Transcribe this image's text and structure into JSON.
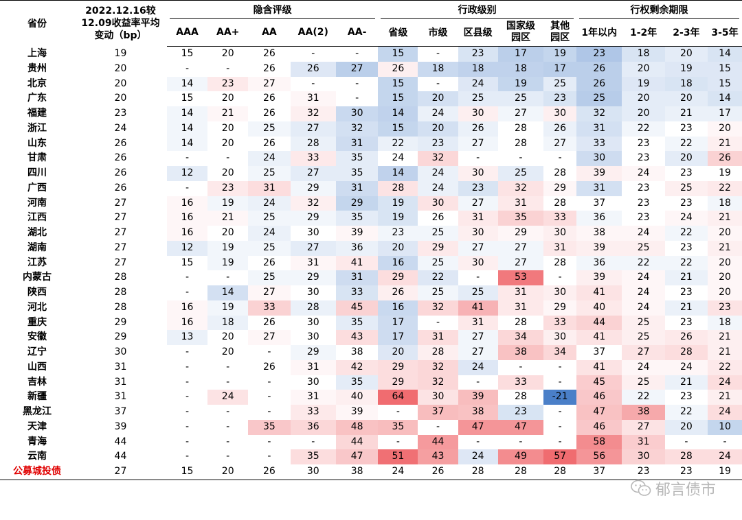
{
  "chart_data": {
    "type": "table",
    "corner_header_province": "省份",
    "corner_header_change": [
      "2022.12.16较",
      "12.09收益率平均",
      "变动（bp）"
    ],
    "groups": [
      {
        "label": "隐含评级",
        "columns": [
          "AAA",
          "AA+",
          "AA",
          "AA(2)",
          "AA-"
        ]
      },
      {
        "label": "行政级别",
        "columns": [
          "省级",
          "市级",
          "区县级",
          "国家级\n园区",
          "其他\n园区"
        ]
      },
      {
        "label": "行权剩余期限",
        "columns": [
          "1年以内",
          "1-2年",
          "2-3年",
          "3-5年"
        ]
      }
    ],
    "rows": [
      {
        "province": "上海",
        "change": "19",
        "cells": [
          "15",
          "20",
          "26",
          "-",
          "-",
          "15",
          "-",
          "23",
          "17",
          "19",
          "23",
          "18",
          "20",
          "14"
        ]
      },
      {
        "province": "贵州",
        "change": "20",
        "cells": [
          "-",
          "-",
          "26",
          "26",
          "27",
          "26",
          "18",
          "18",
          "18",
          "17",
          "26",
          "20",
          "19",
          "15"
        ]
      },
      {
        "province": "北京",
        "change": "20",
        "cells": [
          "14",
          "23",
          "27",
          "-",
          "-",
          "15",
          "-",
          "24",
          "19",
          "25",
          "26",
          "19",
          "18",
          "15"
        ]
      },
      {
        "province": "广东",
        "change": "20",
        "cells": [
          "15",
          "20",
          "26",
          "31",
          "-",
          "15",
          "20",
          "25",
          "25",
          "23",
          "25",
          "20",
          "20",
          "14"
        ]
      },
      {
        "province": "福建",
        "change": "23",
        "cells": [
          "14",
          "21",
          "26",
          "32",
          "30",
          "14",
          "24",
          "30",
          "27",
          "30",
          "32",
          "20",
          "21",
          "17"
        ]
      },
      {
        "province": "浙江",
        "change": "24",
        "cells": [
          "14",
          "20",
          "25",
          "27",
          "32",
          "15",
          "20",
          "26",
          "28",
          "26",
          "31",
          "22",
          "23",
          "20"
        ]
      },
      {
        "province": "山东",
        "change": "26",
        "cells": [
          "14",
          "20",
          "26",
          "28",
          "31",
          "22",
          "23",
          "27",
          "28",
          "27",
          "33",
          "23",
          "22",
          "21"
        ]
      },
      {
        "province": "甘肃",
        "change": "26",
        "cells": [
          "-",
          "-",
          "24",
          "33",
          "35",
          "24",
          "32",
          "-",
          "-",
          "-",
          "30",
          "23",
          "20",
          "26"
        ]
      },
      {
        "province": "四川",
        "change": "26",
        "cells": [
          "12",
          "20",
          "25",
          "27",
          "35",
          "14",
          "24",
          "30",
          "25",
          "28",
          "39",
          "24",
          "23",
          "19"
        ]
      },
      {
        "province": "广西",
        "change": "26",
        "cells": [
          "-",
          "23",
          "31",
          "29",
          "31",
          "28",
          "24",
          "23",
          "32",
          "29",
          "31",
          "23",
          "25",
          "22"
        ]
      },
      {
        "province": "河南",
        "change": "27",
        "cells": [
          "16",
          "19",
          "24",
          "32",
          "29",
          "19",
          "30",
          "27",
          "31",
          "28",
          "37",
          "23",
          "23",
          "18"
        ]
      },
      {
        "province": "江西",
        "change": "27",
        "cells": [
          "16",
          "21",
          "25",
          "29",
          "35",
          "19",
          "26",
          "31",
          "35",
          "33",
          "36",
          "23",
          "24",
          "21"
        ]
      },
      {
        "province": "湖北",
        "change": "27",
        "cells": [
          "16",
          "20",
          "24",
          "30",
          "39",
          "23",
          "25",
          "30",
          "29",
          "30",
          "38",
          "24",
          "22",
          "20"
        ]
      },
      {
        "province": "湖南",
        "change": "27",
        "cells": [
          "12",
          "19",
          "25",
          "27",
          "36",
          "20",
          "29",
          "27",
          "27",
          "31",
          "39",
          "25",
          "23",
          "21"
        ]
      },
      {
        "province": "江苏",
        "change": "27",
        "cells": [
          "15",
          "19",
          "26",
          "31",
          "41",
          "16",
          "25",
          "30",
          "27",
          "28",
          "36",
          "22",
          "22",
          "20"
        ]
      },
      {
        "province": "内蒙古",
        "change": "28",
        "cells": [
          "-",
          "-",
          "25",
          "29",
          "31",
          "29",
          "22",
          "-",
          "53",
          "-",
          "39",
          "24",
          "21",
          "20"
        ]
      },
      {
        "province": "陕西",
        "change": "28",
        "cells": [
          "-",
          "14",
          "27",
          "30",
          "33",
          "26",
          "25",
          "25",
          "31",
          "30",
          "41",
          "24",
          "23",
          "20"
        ]
      },
      {
        "province": "河北",
        "change": "28",
        "cells": [
          "16",
          "19",
          "33",
          "28",
          "45",
          "16",
          "32",
          "41",
          "31",
          "29",
          "40",
          "24",
          "21",
          "23"
        ]
      },
      {
        "province": "重庆",
        "change": "29",
        "cells": [
          "16",
          "18",
          "26",
          "30",
          "35",
          "17",
          "-",
          "31",
          "28",
          "33",
          "44",
          "25",
          "23",
          "18"
        ]
      },
      {
        "province": "安徽",
        "change": "29",
        "cells": [
          "13",
          "20",
          "27",
          "30",
          "43",
          "17",
          "31",
          "27",
          "34",
          "30",
          "41",
          "25",
          "26",
          "21"
        ]
      },
      {
        "province": "辽宁",
        "change": "30",
        "cells": [
          "-",
          "20",
          "-",
          "29",
          "38",
          "20",
          "28",
          "27",
          "38",
          "34",
          "37",
          "27",
          "28",
          "21"
        ]
      },
      {
        "province": "山西",
        "change": "31",
        "cells": [
          "-",
          "-",
          "26",
          "31",
          "42",
          "29",
          "32",
          "24",
          "-",
          "-",
          "41",
          "24",
          "24",
          "22"
        ]
      },
      {
        "province": "吉林",
        "change": "31",
        "cells": [
          "-",
          "-",
          "-",
          "30",
          "35",
          "29",
          "32",
          "-",
          "33",
          "-",
          "45",
          "25",
          "21",
          "24"
        ]
      },
      {
        "province": "新疆",
        "change": "31",
        "cells": [
          "-",
          "24",
          "-",
          "31",
          "40",
          "64",
          "30",
          "39",
          "28",
          "-21",
          "46",
          "22",
          "23",
          "21"
        ]
      },
      {
        "province": "黑龙江",
        "change": "37",
        "cells": [
          "-",
          "-",
          "-",
          "33",
          "39",
          "-",
          "37",
          "38",
          "23",
          "-",
          "47",
          "38",
          "22",
          "24"
        ]
      },
      {
        "province": "天津",
        "change": "39",
        "cells": [
          "-",
          "-",
          "35",
          "36",
          "48",
          "35",
          "-",
          "47",
          "47",
          "-",
          "46",
          "27",
          "20",
          "10"
        ]
      },
      {
        "province": "青海",
        "change": "44",
        "cells": [
          "-",
          "-",
          "-",
          "-",
          "44",
          "-",
          "44",
          "-",
          "-",
          "-",
          "58",
          "31",
          "-",
          "-"
        ]
      },
      {
        "province": "云南",
        "change": "44",
        "cells": [
          "-",
          "-",
          "-",
          "35",
          "47",
          "51",
          "43",
          "24",
          "49",
          "57",
          "56",
          "30",
          "28",
          "24"
        ]
      },
      {
        "province": "公募城投债",
        "change": "27",
        "cells": [
          "15",
          "20",
          "26",
          "30",
          "38",
          "24",
          "26",
          "28",
          "28",
          "28",
          "37",
          "23",
          "23",
          "19"
        ],
        "highlight": true
      }
    ],
    "colors": {
      "low": "#4a7fc8",
      "mid": "#ffffff",
      "high": "#f06c70",
      "highlight_text": "#e00000"
    }
  },
  "watermark": {
    "icon": "wechat-icon",
    "text": "郁言债市"
  }
}
